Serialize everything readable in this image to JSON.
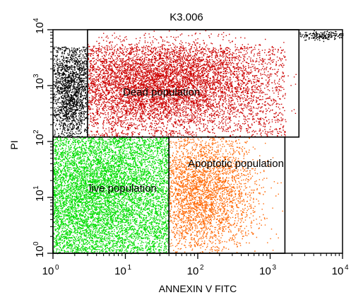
{
  "chart_data": {
    "type": "scatter",
    "title": "K3.006",
    "xlabel": "ANNEXIN V FITC",
    "ylabel": "PI",
    "xscale": "log",
    "yscale": "log",
    "xlim": [
      1,
      10000
    ],
    "ylim": [
      1,
      10000
    ],
    "x_ticks": [
      {
        "value": 1,
        "base": "10",
        "exp": "0"
      },
      {
        "value": 10,
        "base": "10",
        "exp": "1"
      },
      {
        "value": 100,
        "base": "10",
        "exp": "2"
      },
      {
        "value": 1000,
        "base": "10",
        "exp": "3"
      },
      {
        "value": 10000,
        "base": "10",
        "exp": "4"
      }
    ],
    "y_ticks": [
      {
        "value": 1,
        "base": "10",
        "exp": "0"
      },
      {
        "value": 10,
        "base": "10",
        "exp": "1"
      },
      {
        "value": 100,
        "base": "10",
        "exp": "2"
      },
      {
        "value": 1000,
        "base": "10",
        "exp": "3"
      },
      {
        "value": 10000,
        "base": "10",
        "exp": "4"
      }
    ],
    "gates": [
      {
        "label": "Dead population",
        "x_range": [
          3,
          2500
        ],
        "y_range": [
          120,
          10000
        ],
        "color": "#cc0000"
      },
      {
        "label": "live population",
        "x_range": [
          1,
          40
        ],
        "y_range": [
          1,
          120
        ],
        "color": "#00dd00"
      },
      {
        "label": "Apoptotic population",
        "x_range": [
          40,
          1600
        ],
        "y_range": [
          1,
          120
        ],
        "color": "#ff6600"
      }
    ],
    "unlabeled_regions": [
      {
        "x_range": [
          1,
          3
        ],
        "y_range": [
          120,
          5000
        ],
        "color": "#000000"
      },
      {
        "x_range": [
          2500,
          10000
        ],
        "y_range": [
          6000,
          10000
        ],
        "color": "#000000"
      }
    ]
  }
}
